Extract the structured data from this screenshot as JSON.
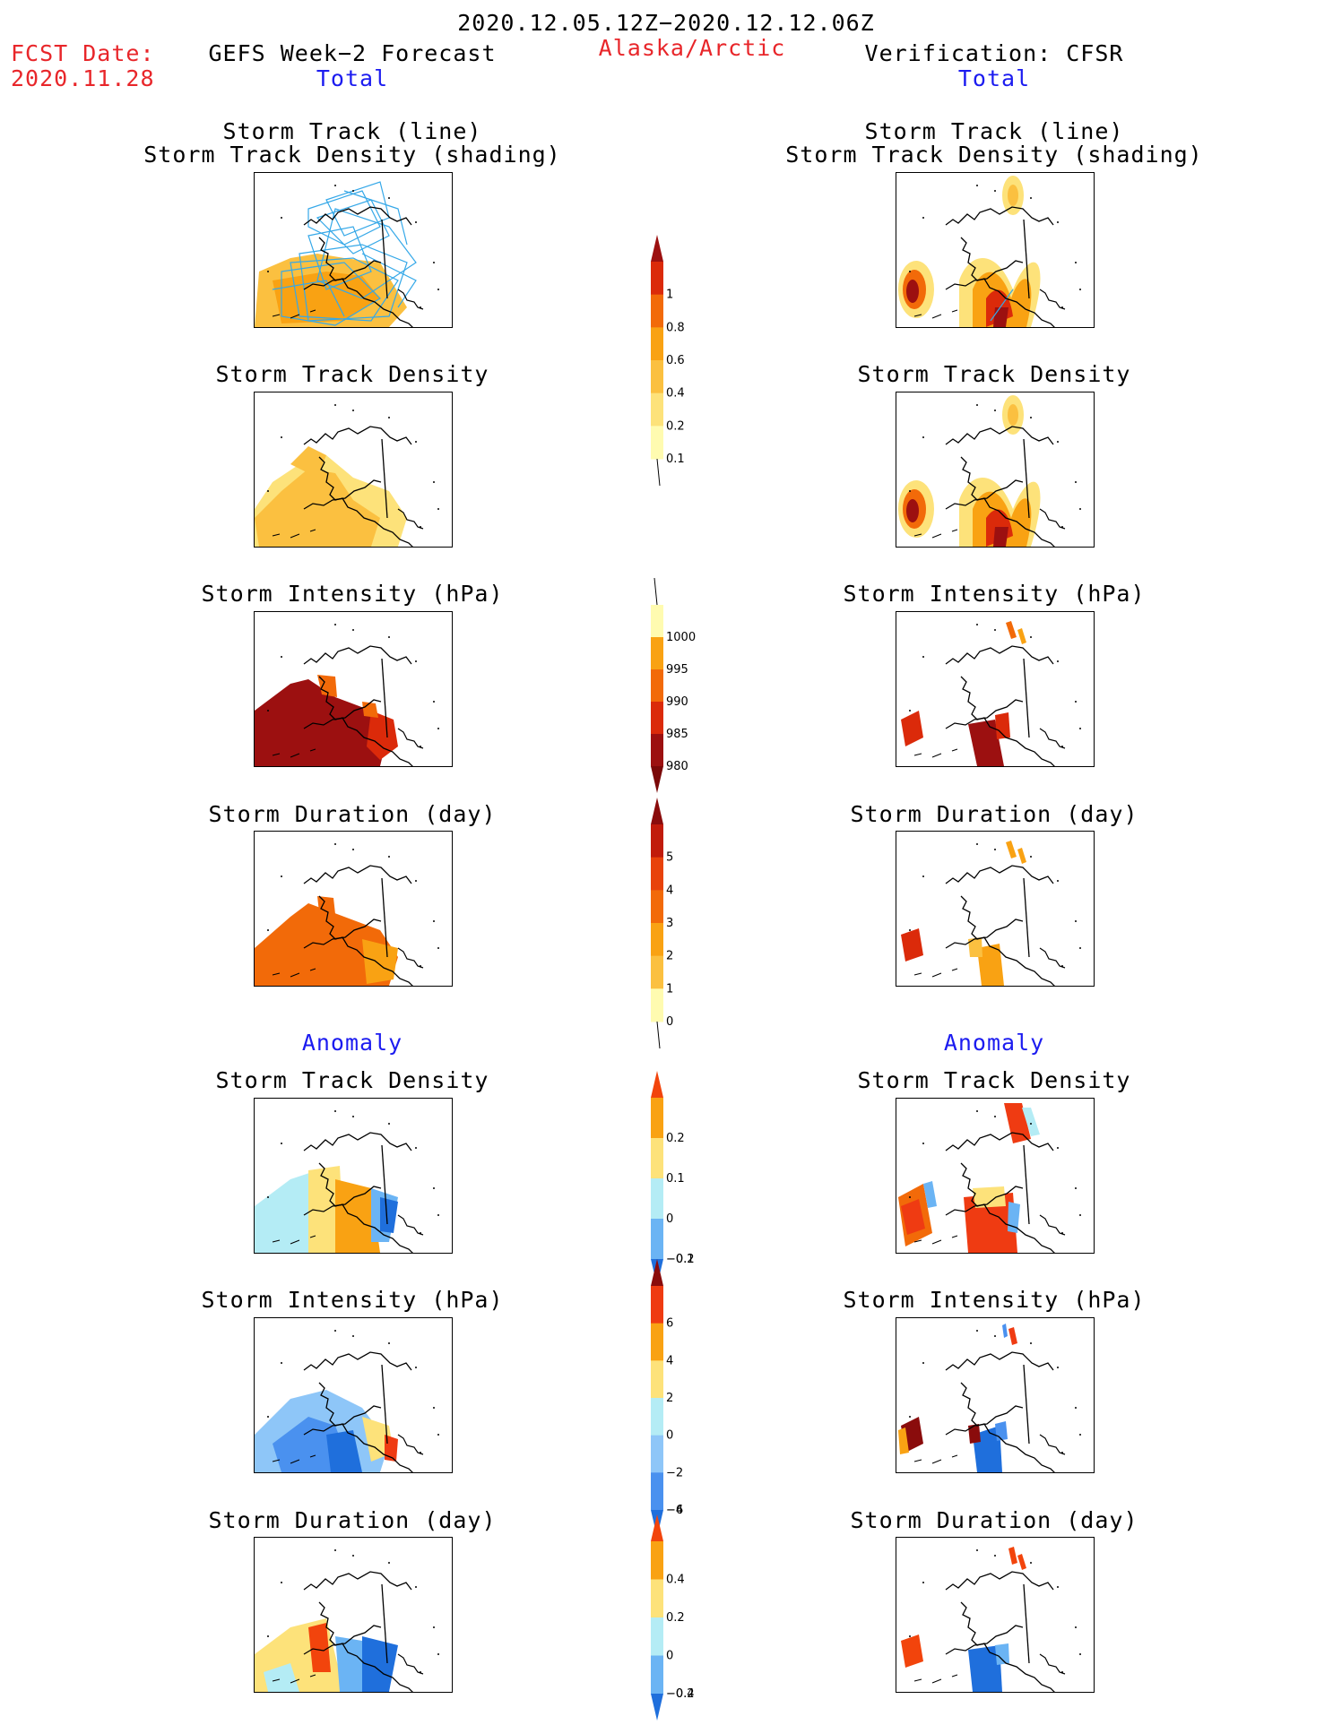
{
  "header": {
    "date_range": "2020.12.05.12Z−2020.12.12.06Z",
    "fcst_label": "FCST Date:",
    "fcst_date": "2020.11.28",
    "left_title": "GEFS Week−2 Forecast",
    "region": "Alaska/Arctic",
    "right_title": "Verification: CFSR"
  },
  "sections": {
    "total": "Total",
    "anomaly": "Anomaly"
  },
  "panel_titles": {
    "track_line": "Storm Track (line)",
    "track_density_shading": "Storm Track Density (shading)",
    "track_density": "Storm Track Density",
    "intensity": "Storm Intensity (hPa)",
    "duration": "Storm Duration (day)"
  },
  "colorbars": {
    "density": {
      "labels": [
        "0.1",
        "0.2",
        "0.4",
        "0.6",
        "0.8",
        "1"
      ],
      "colors": [
        "#fffbb0",
        "#fde27a",
        "#fbc040",
        "#f9a213",
        "#f26a09",
        "#db2a0a",
        "#9c1010"
      ]
    },
    "intensity": {
      "labels": [
        "1000",
        "995",
        "990",
        "985",
        "980"
      ],
      "colors": [
        "#fffbb0",
        "#f9a213",
        "#f26a09",
        "#db2a0a",
        "#9c1010",
        "#7a0808"
      ]
    },
    "duration": {
      "labels": [
        "0",
        "1",
        "2",
        "3",
        "4",
        "5"
      ],
      "colors": [
        "#fffbb0",
        "#fbc040",
        "#f9a213",
        "#f26a09",
        "#e8420b",
        "#c11b0b",
        "#8a0c0c"
      ]
    },
    "anom_density": {
      "labels": [
        "0.2",
        "0.1",
        "0",
        "−0.1",
        "−0.2"
      ],
      "colors": [
        "#f2440c",
        "#f9a213",
        "#fde27a",
        "#b4ecf5",
        "#6bb4f4",
        "#1f6fdc"
      ]
    },
    "anom_intensity": {
      "labels": [
        "6",
        "4",
        "2",
        "0",
        "−2",
        "−4",
        "−6"
      ],
      "colors": [
        "#8a0c0c",
        "#ef3b12",
        "#f9a213",
        "#fde27a",
        "#b4ecf5",
        "#8ec6f8",
        "#4a91ef",
        "#1f6fdc"
      ]
    },
    "anom_duration": {
      "labels": [
        "0.4",
        "0.2",
        "0",
        "−0.2",
        "−0.4"
      ],
      "colors": [
        "#f2440c",
        "#f9a213",
        "#fde27a",
        "#b4ecf5",
        "#6bb4f4",
        "#1f6fdc"
      ]
    }
  }
}
